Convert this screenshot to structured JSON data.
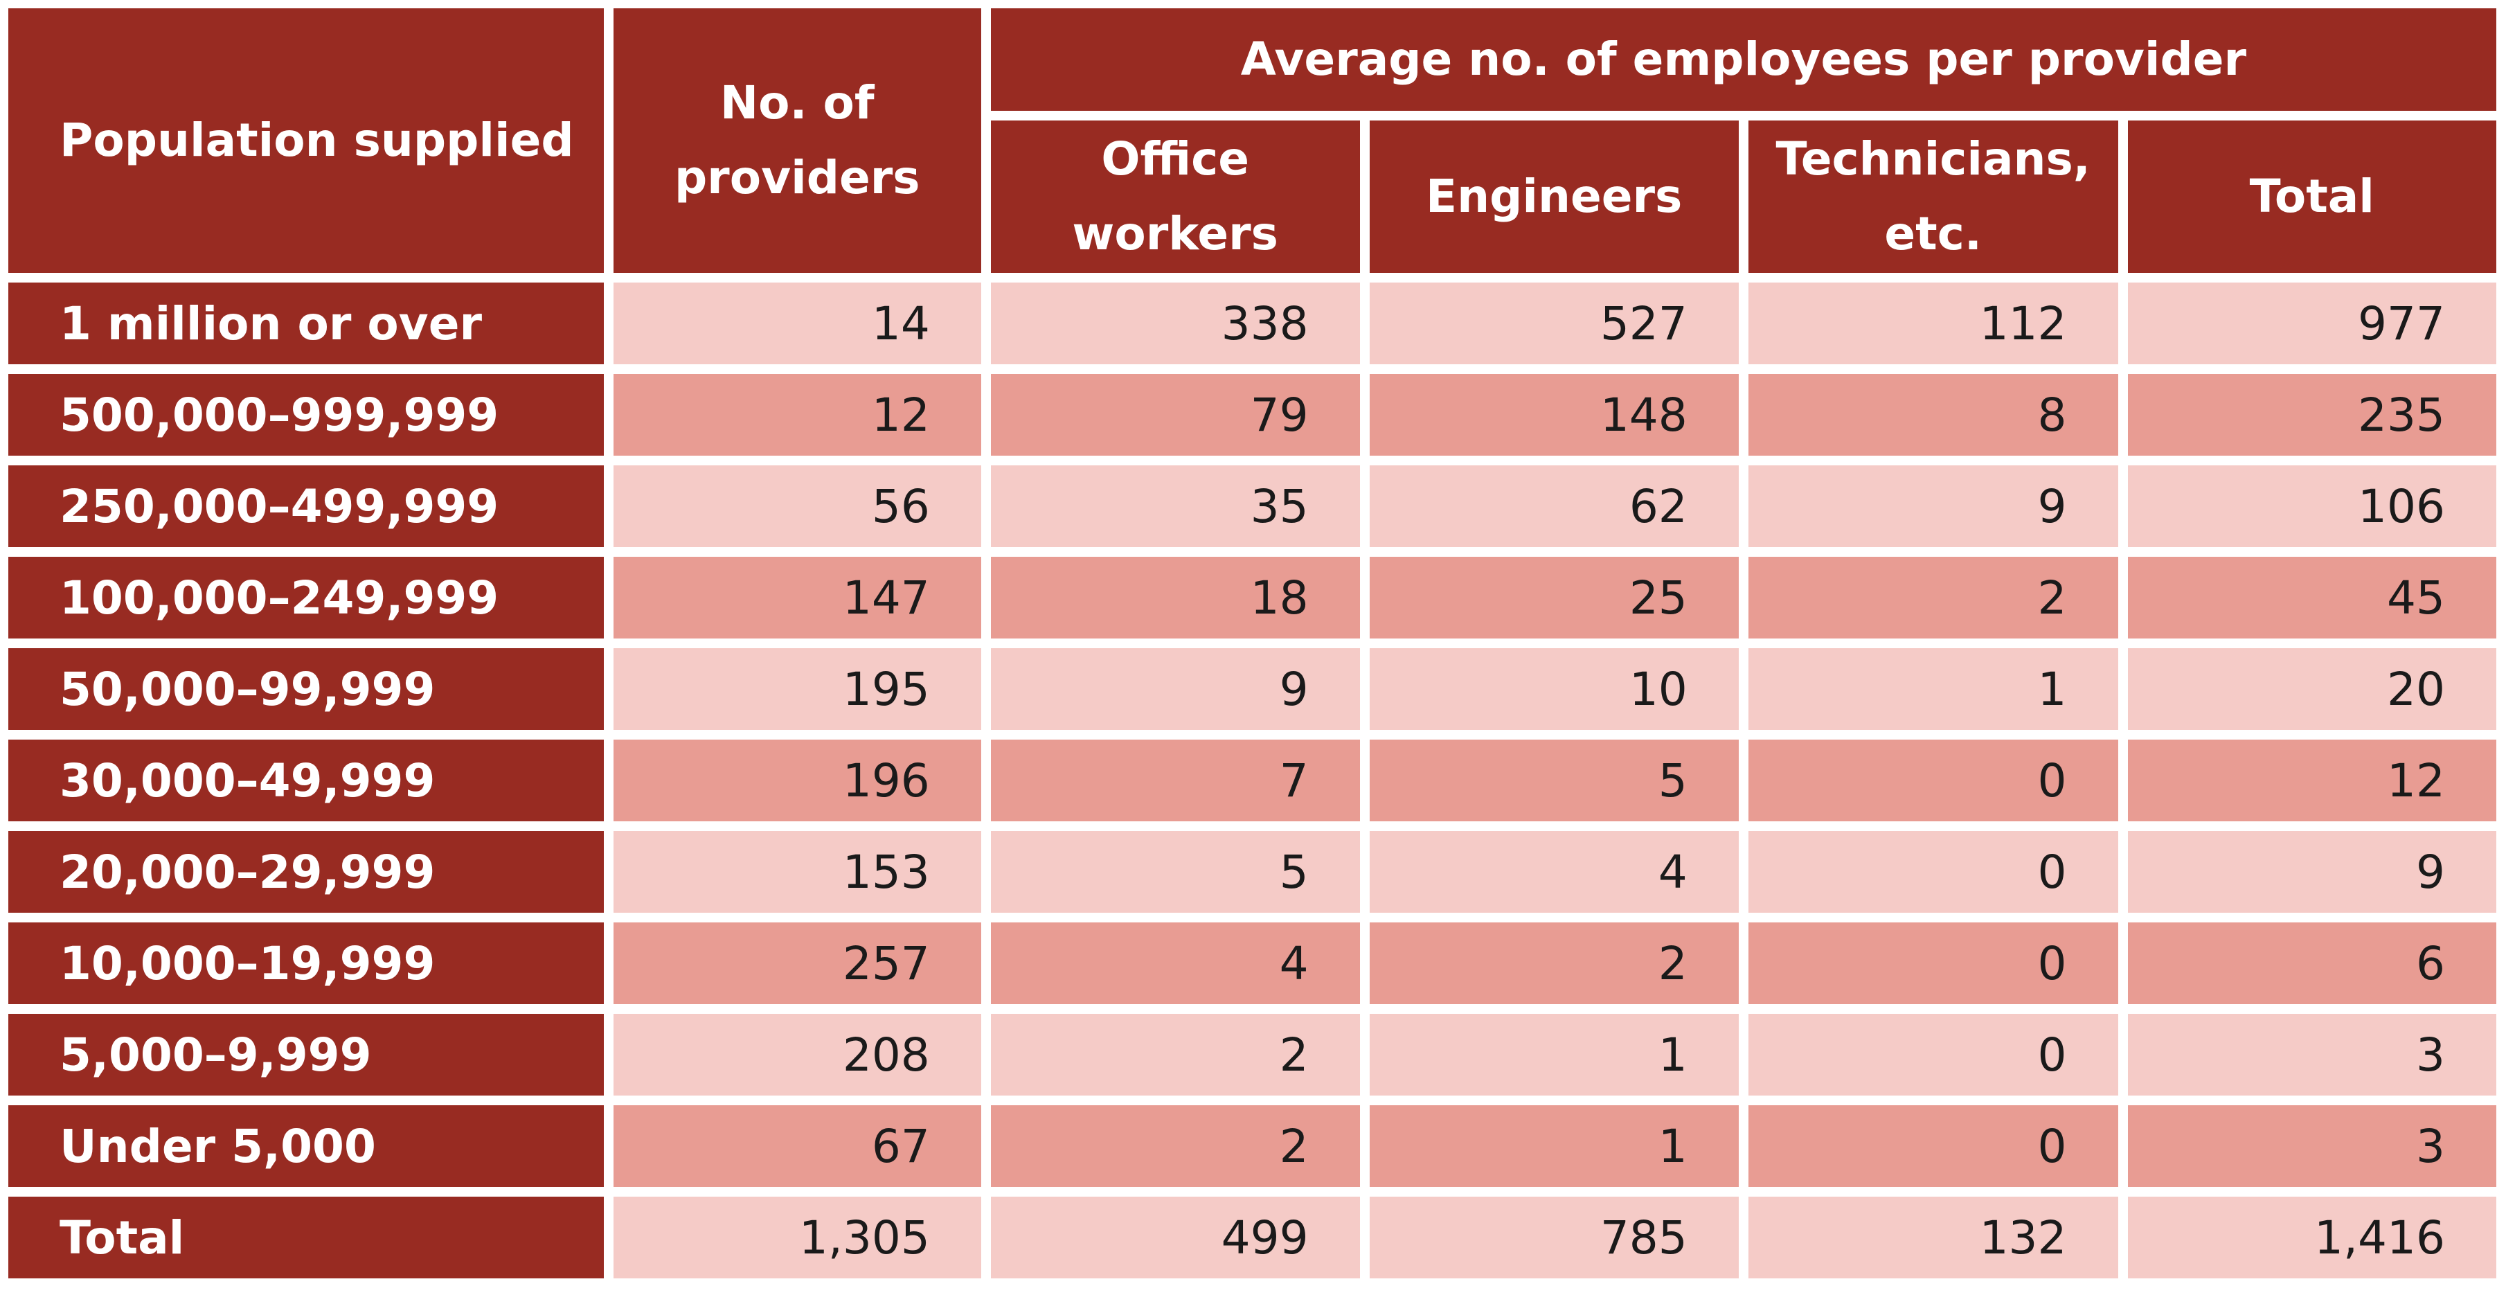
{
  "chart_data": {
    "type": "table",
    "headers": {
      "population": "Population supplied",
      "providers": "No. of providers",
      "group": "Average no. of employees per provider",
      "sub": [
        "Office workers",
        "Engineers",
        "Technicians, etc.",
        "Total"
      ]
    },
    "rows": [
      {
        "label": "1 million or over",
        "values": [
          "14",
          "338",
          "527",
          "112",
          "977"
        ]
      },
      {
        "label": "500,000–999,999",
        "values": [
          "12",
          "79",
          "148",
          "8",
          "235"
        ]
      },
      {
        "label": "250,000–499,999",
        "values": [
          "56",
          "35",
          "62",
          "9",
          "106"
        ]
      },
      {
        "label": "100,000–249,999",
        "values": [
          "147",
          "18",
          "25",
          "2",
          "45"
        ]
      },
      {
        "label": "50,000–99,999",
        "values": [
          "195",
          "9",
          "10",
          "1",
          "20"
        ]
      },
      {
        "label": "30,000–49,999",
        "values": [
          "196",
          "7",
          "5",
          "0",
          "12"
        ]
      },
      {
        "label": "20,000–29,999",
        "values": [
          "153",
          "5",
          "4",
          "0",
          "9"
        ]
      },
      {
        "label": "10,000–19,999",
        "values": [
          "257",
          "4",
          "2",
          "0",
          "6"
        ]
      },
      {
        "label": "5,000–9,999",
        "values": [
          "208",
          "2",
          "1",
          "0",
          "3"
        ]
      },
      {
        "label": "Under 5,000",
        "values": [
          "67",
          "2",
          "1",
          "0",
          "3"
        ]
      },
      {
        "label": "Total",
        "values": [
          "1,305",
          "499",
          "785",
          "132",
          "1,416"
        ]
      }
    ]
  },
  "colors": {
    "header_bg": "#982b22",
    "row_light": "#f5cbc7",
    "row_dark": "#e89c93"
  }
}
